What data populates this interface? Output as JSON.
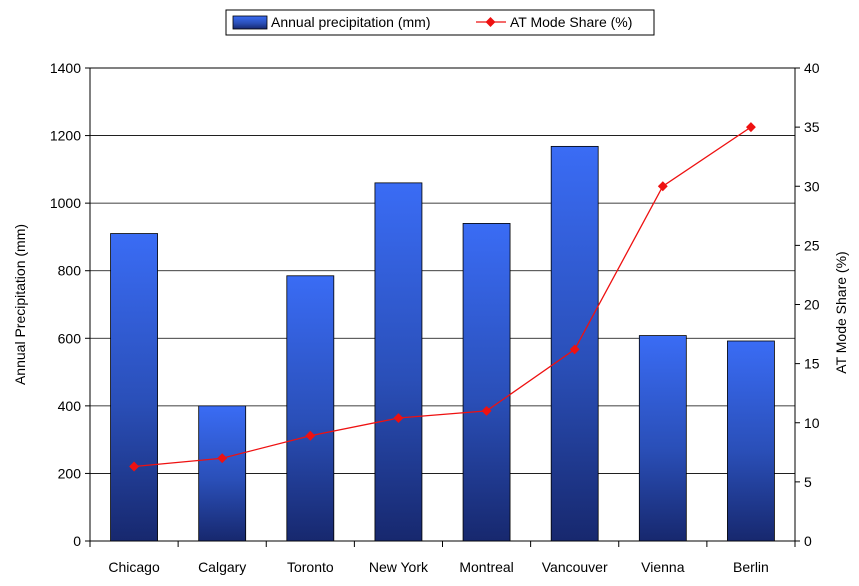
{
  "chart_data": {
    "type": "bar",
    "categories": [
      "Chicago",
      "Calgary",
      "Toronto",
      "New York",
      "Montreal",
      "Vancouver",
      "Vienna",
      "Berlin"
    ],
    "series": [
      {
        "name": "Annual precipitation (mm)",
        "type": "bar",
        "axis": "left",
        "color": "#2f5fd8",
        "values": [
          910,
          400,
          785,
          1060,
          940,
          1168,
          608,
          592
        ]
      },
      {
        "name": "AT Mode Share (%)",
        "type": "line",
        "axis": "right",
        "color": "#ee1111",
        "values": [
          6.3,
          7.0,
          8.9,
          10.4,
          11.0,
          16.2,
          30.0,
          35.0
        ]
      }
    ],
    "ylabel": "Annual Precipitation (mm)",
    "y2label": "AT Mode Share (%)",
    "ylim": [
      0,
      1400
    ],
    "yticks": [
      "0",
      "200",
      "400",
      "600",
      "800",
      "1000",
      "1200",
      "1400"
    ],
    "y2lim": [
      0,
      40
    ],
    "y2ticks": [
      "0",
      "5",
      "10",
      "15",
      "20",
      "25",
      "30",
      "35",
      "40"
    ],
    "grid": true,
    "legend_position": "top-center"
  }
}
